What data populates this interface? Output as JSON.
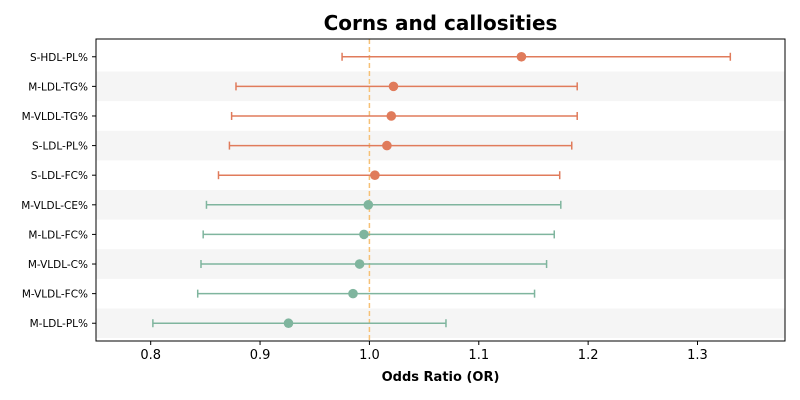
{
  "chart_data": {
    "type": "scatter",
    "subtype": "forest-plot",
    "title": "Corns and callosities",
    "xlabel": "Odds Ratio (OR)",
    "ylabel": "",
    "xlim": [
      0.75,
      1.38
    ],
    "xticks": [
      0.8,
      0.9,
      1.0,
      1.1,
      1.2,
      1.3
    ],
    "xtick_labels": [
      "0.8",
      "0.9",
      "1.0",
      "1.1",
      "1.2",
      "1.3"
    ],
    "reference_line": 1.0,
    "reference_color": "#f6c177",
    "grid": false,
    "alternating_row_shading": true,
    "categories": [
      "S-HDL-PL%",
      "M-LDL-TG%",
      "M-VLDL-TG%",
      "S-LDL-PL%",
      "S-LDL-FC%",
      "M-VLDL-CE%",
      "M-LDL-FC%",
      "M-VLDL-C%",
      "M-VLDL-FC%",
      "M-LDL-PL%"
    ],
    "or": [
      1.139,
      1.022,
      1.02,
      1.016,
      1.005,
      0.999,
      0.995,
      0.991,
      0.985,
      0.926
    ],
    "ci_lower": [
      0.975,
      0.878,
      0.874,
      0.872,
      0.862,
      0.851,
      0.848,
      0.846,
      0.843,
      0.802
    ],
    "ci_upper": [
      1.33,
      1.19,
      1.19,
      1.185,
      1.174,
      1.175,
      1.169,
      1.162,
      1.151,
      1.07
    ],
    "colors": {
      "risk": "#e07b5b",
      "protective": "#7fb59e"
    }
  }
}
